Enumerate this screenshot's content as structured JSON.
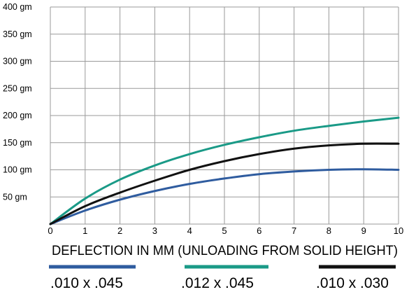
{
  "chart_data": {
    "type": "line",
    "title": "",
    "xlabel": "DEFLECTION IN MM  (UNLOADING FROM SOLID HEIGHT)",
    "ylabel": "",
    "xlim": [
      0,
      10
    ],
    "ylim": [
      0,
      400
    ],
    "x_ticks": [
      "0",
      "1",
      "2",
      "3",
      "4",
      "5",
      "6",
      "7",
      "8",
      "9",
      "10"
    ],
    "y_ticks": [
      "50 gm",
      "100 gm",
      "150 gm",
      "200 gm",
      "250 gm",
      "300 gm",
      "350 gm",
      "400 gm"
    ],
    "grid": true,
    "x": [
      0,
      1,
      2,
      3,
      4,
      5,
      6,
      7,
      8,
      9,
      10
    ],
    "series": [
      {
        "name": ".010 x .045",
        "color": "#2f5c9f",
        "values": [
          0,
          25,
          45,
          61,
          74,
          84,
          92,
          97,
          100,
          101,
          100
        ]
      },
      {
        "name": ".012 x .045",
        "color": "#1a9a87",
        "values": [
          0,
          47,
          82,
          108,
          129,
          146,
          160,
          172,
          181,
          189,
          196
        ]
      },
      {
        "name": ".010 x .030",
        "color": "#111111",
        "values": [
          0,
          33,
          58,
          80,
          100,
          116,
          129,
          139,
          145,
          148,
          148
        ]
      }
    ],
    "legend_position": "bottom"
  }
}
